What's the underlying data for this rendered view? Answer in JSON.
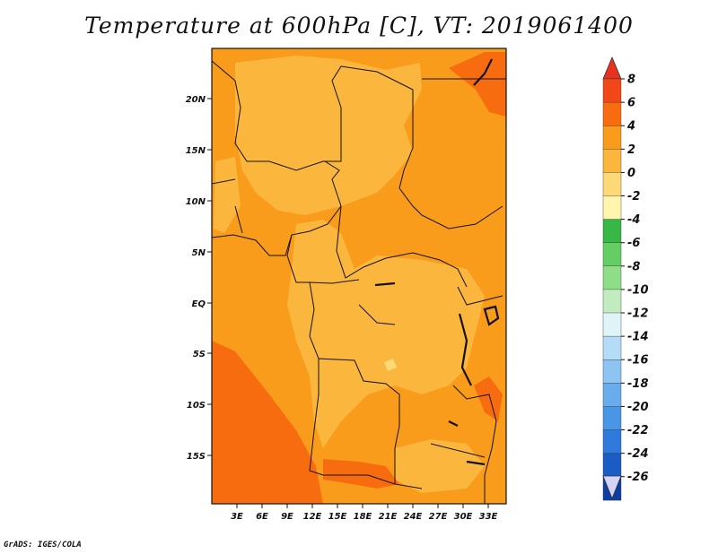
{
  "title": "Temperature at 600hPa [C], VT: 2019061400",
  "credit": "GrADS: IGES/COLA",
  "map": {
    "lat_range": [
      -20,
      24.5
    ],
    "lon_range": [
      0,
      35
    ],
    "lat_ticks": [
      "20N",
      "15N",
      "10N",
      "5N",
      "EQ",
      "5S",
      "10S",
      "15S"
    ],
    "lon_ticks": [
      "3E",
      "6E",
      "9E",
      "12E",
      "15E",
      "18E",
      "21E",
      "24E",
      "27E",
      "30E",
      "33E"
    ]
  },
  "colorbar": {
    "labels": [
      "8",
      "6",
      "4",
      "2",
      "0",
      "-2",
      "-4",
      "-6",
      "-8",
      "-10",
      "-12",
      "-14",
      "-16",
      "-18",
      "-20",
      "-22",
      "-24",
      "-26"
    ],
    "top_color": "#e83220",
    "colors": [
      "#f04818",
      "#f86c10",
      "#f99c1b",
      "#fbb63e",
      "#fed978",
      "#fff5ae",
      "#36b746",
      "#64cd63",
      "#8fdd88",
      "#c3ebc0",
      "#e0f4f8",
      "#b4dcf6",
      "#8ec4f2",
      "#69acec",
      "#4996e7",
      "#2f79da",
      "#1a5bc4",
      "#0e3f9f"
    ],
    "bottom_color": "#d4d4f4",
    "bottom_tail": "#10105a"
  },
  "fill_colors": {
    "light": "#fbb63e",
    "mid": "#f99c1b",
    "dark": "#f86c10",
    "pale": "#fed978"
  }
}
